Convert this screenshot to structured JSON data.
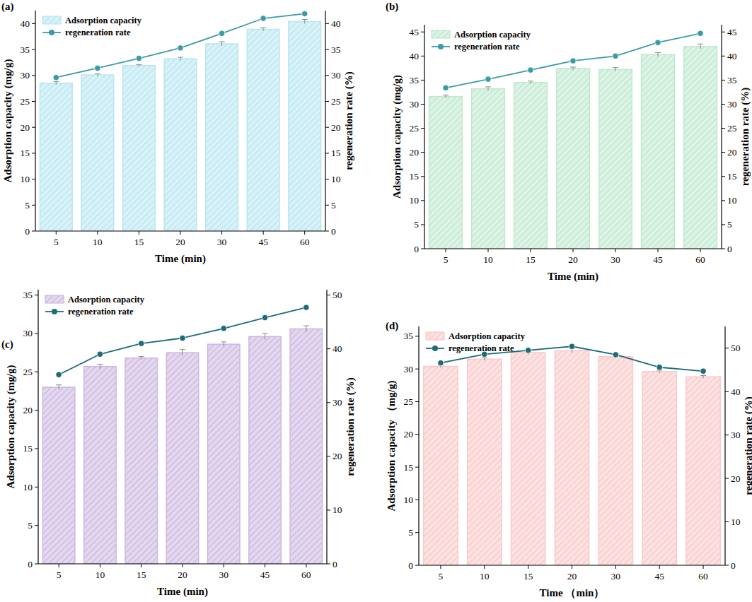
{
  "chart_data": [
    {
      "type": "bar",
      "title": "(a)",
      "x_label": "Time (min)",
      "y_label": "Adsorption capacity (mg/g)",
      "y2_label": "regeneration rate (%)",
      "categories": [
        "5",
        "10",
        "15",
        "20",
        "30",
        "45",
        "60"
      ],
      "ylim": [
        0,
        42.5
      ],
      "yticks": [
        0,
        5,
        10,
        15,
        20,
        25,
        30,
        35,
        40
      ],
      "y2lim": [
        0,
        42.5
      ],
      "y2ticks": [
        0,
        5,
        10,
        15,
        20,
        25,
        30,
        35,
        40
      ],
      "legend": "upper left",
      "series": [
        {
          "name": "Adsorption capacity",
          "type": "bar",
          "color": "#b9e6f2",
          "values": [
            28.5,
            30.1,
            31.9,
            33.2,
            36.1,
            38.9,
            40.4
          ],
          "errors": [
            0.3,
            0.2,
            0.2,
            0.3,
            0.4,
            0.3,
            0.4
          ]
        },
        {
          "name": "regeneration rate",
          "type": "line",
          "axis": "y2",
          "color": "#3b9ca8",
          "marker": "circle",
          "values": [
            29.6,
            31.4,
            33.3,
            35.3,
            38.1,
            41.0,
            41.9
          ]
        }
      ]
    },
    {
      "type": "bar",
      "title": "(b)",
      "x_label": "Time (min)",
      "y_label": "Adsorption capacity (mg/g)",
      "y2_label": "regeneration rate (%)",
      "categories": [
        "5",
        "10",
        "15",
        "20",
        "30",
        "45",
        "60"
      ],
      "ylim": [
        0,
        46.5
      ],
      "yticks": [
        0,
        5,
        10,
        15,
        20,
        25,
        30,
        35,
        40,
        45
      ],
      "y2lim": [
        0,
        46.5
      ],
      "y2ticks": [
        0,
        5,
        10,
        15,
        20,
        25,
        30,
        35,
        40,
        45
      ],
      "legend": "upper left",
      "series": [
        {
          "name": "Adsorption capacity",
          "type": "bar",
          "color": "#bfe8cf",
          "values": [
            31.6,
            33.2,
            34.5,
            37.4,
            37.2,
            40.3,
            42.0
          ],
          "errors": [
            0.3,
            0.4,
            0.3,
            0.3,
            0.4,
            0.4,
            0.5
          ]
        },
        {
          "name": "regeneration rate",
          "type": "line",
          "axis": "y2",
          "color": "#3b9ca8",
          "marker": "circle",
          "values": [
            33.4,
            35.2,
            37.1,
            39.0,
            40.0,
            42.8,
            44.7
          ]
        }
      ]
    },
    {
      "type": "bar",
      "title": "(c)",
      "x_label": "Time (min)",
      "y_label": "Adsorption capacity (mg/g)",
      "y2_label": "regeneration  rate (%)",
      "categories": [
        "5",
        "10",
        "15",
        "20",
        "30",
        "45",
        "60"
      ],
      "ylim": [
        0,
        35.7
      ],
      "yticks": [
        0,
        5,
        10,
        15,
        20,
        25,
        30,
        35
      ],
      "y2lim": [
        0,
        51
      ],
      "y2ticks": [
        0,
        10,
        20,
        30,
        40,
        50
      ],
      "legend": "upper left",
      "series": [
        {
          "name": "Adsorption capacity",
          "type": "bar",
          "color": "#cdb8e2",
          "values": [
            23.0,
            25.7,
            26.8,
            27.5,
            28.6,
            29.6,
            30.6
          ],
          "errors": [
            0.3,
            0.3,
            0.2,
            0.4,
            0.3,
            0.4,
            0.4
          ]
        },
        {
          "name": "regeneration  rate",
          "type": "line",
          "axis": "y2",
          "color": "#1e6b7a",
          "marker": "circle",
          "values": [
            35.2,
            39.0,
            41.0,
            42.0,
            43.8,
            45.8,
            47.7
          ]
        }
      ]
    },
    {
      "type": "bar",
      "title": "(d)",
      "x_label": "Time （min）",
      "y_label": "Adsorption capacity （mg/g)",
      "y2_label": "regeneration rate (%)",
      "categories": [
        "5",
        "10",
        "15",
        "20",
        "30",
        "45",
        "60"
      ],
      "ylim": [
        0,
        36.5
      ],
      "yticks": [
        0,
        5,
        10,
        15,
        20,
        25,
        30,
        35
      ],
      "y2lim": [
        0,
        55
      ],
      "y2ticks": [
        0,
        10,
        20,
        30,
        40,
        50
      ],
      "legend": "upper left",
      "series": [
        {
          "name": "Adsorption capacity",
          "type": "bar",
          "color": "#f9c9c9",
          "values": [
            30.4,
            31.5,
            32.5,
            32.8,
            31.9,
            29.6,
            28.8
          ],
          "errors": [
            0.2,
            0.2,
            0.3,
            0.3,
            0.2,
            0.2,
            0.2
          ]
        },
        {
          "name": "regeneration rate",
          "type": "line",
          "axis": "y2",
          "color": "#1e6b7a",
          "marker": "circle",
          "values": [
            46.6,
            48.6,
            49.5,
            50.4,
            48.5,
            45.6,
            44.7
          ]
        }
      ]
    }
  ]
}
